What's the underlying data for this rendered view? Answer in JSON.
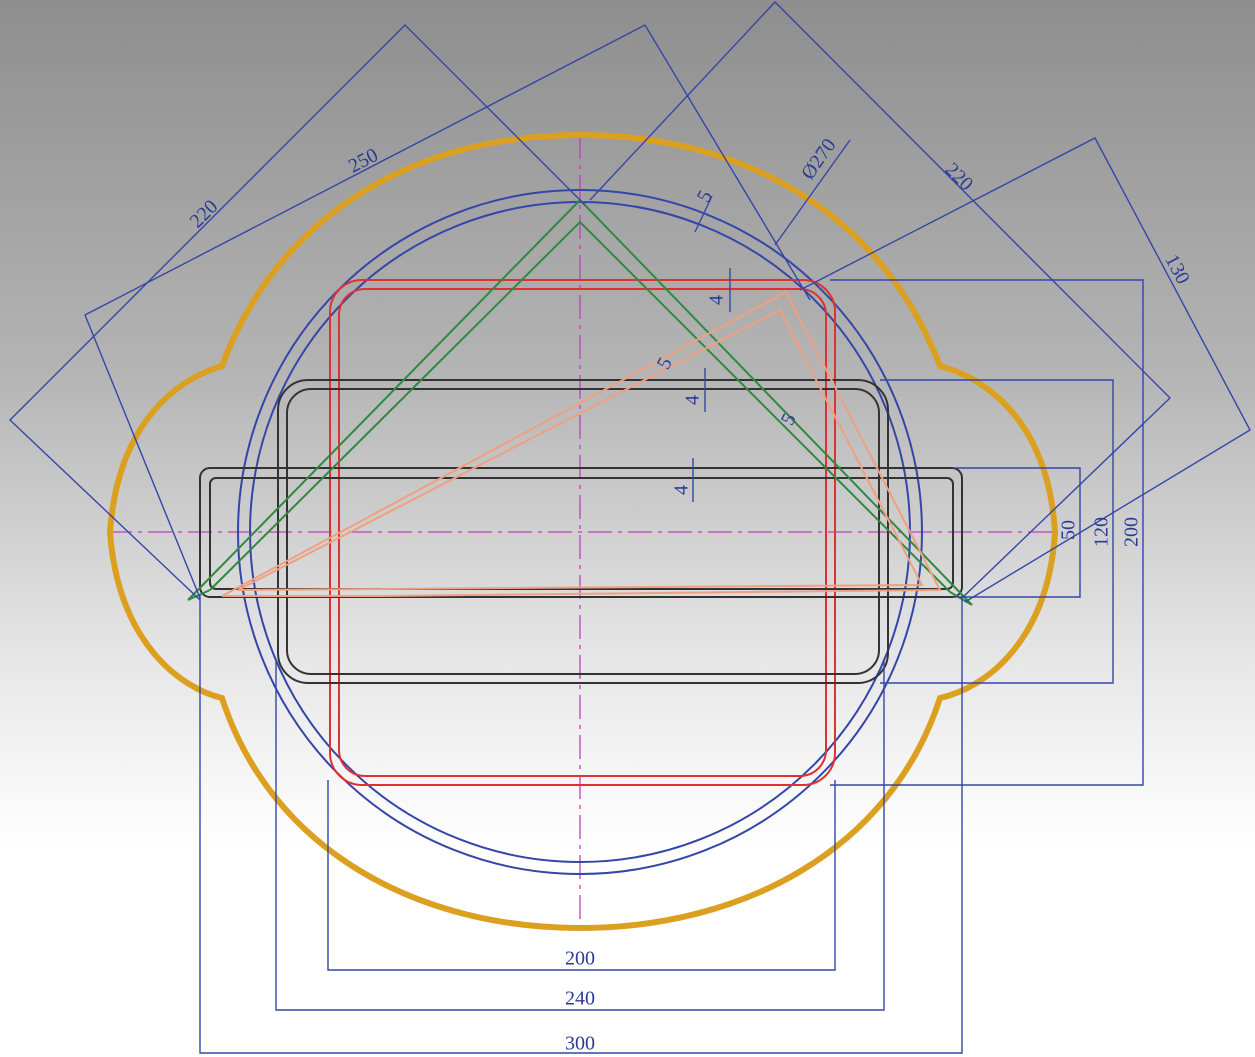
{
  "dimensions": [
    {
      "label": "220"
    },
    {
      "label": "250"
    },
    {
      "label": "Ø270"
    },
    {
      "label": "220"
    },
    {
      "label": "130"
    },
    {
      "label": "5"
    },
    {
      "label": "4"
    },
    {
      "label": "5"
    },
    {
      "label": "4"
    },
    {
      "label": "5"
    },
    {
      "label": "4"
    },
    {
      "label": "50"
    },
    {
      "label": "120"
    },
    {
      "label": "200"
    },
    {
      "label": "200"
    },
    {
      "label": "240"
    },
    {
      "label": "300"
    }
  ]
}
